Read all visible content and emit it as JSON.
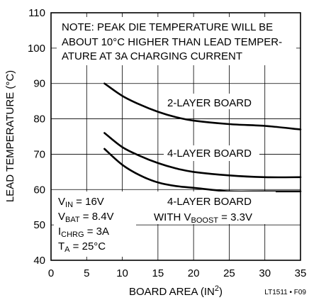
{
  "chart_data": {
    "type": "line",
    "xlabel": "BOARD AREA (IN",
    "xlabel_sup": "2",
    "xlabel_tail": ")",
    "ylabel": "LEAD TEMPERATURE (°C)",
    "xlim": [
      0,
      35
    ],
    "ylim": [
      40,
      110
    ],
    "x_ticks": [
      "0",
      "5",
      "10",
      "15",
      "20",
      "25",
      "30",
      "35"
    ],
    "y_ticks": [
      "40",
      "50",
      "60",
      "70",
      "80",
      "90",
      "100",
      "110"
    ],
    "grid": true,
    "series": [
      {
        "name": "2-LAYER BOARD",
        "x": [
          7.5,
          10,
          12.5,
          15,
          17.5,
          20,
          25,
          30,
          35
        ],
        "y": [
          90,
          86.5,
          84,
          82,
          80.5,
          79.5,
          78.5,
          78,
          77
        ]
      },
      {
        "name": "4-LAYER BOARD",
        "x": [
          7.5,
          10,
          12.5,
          15,
          17.5,
          20,
          25,
          30,
          35
        ],
        "y": [
          76,
          72,
          69.5,
          67.5,
          66,
          65,
          64,
          63.5,
          63.5
        ]
      },
      {
        "name": "4-LAYER BOARD WITH V",
        "name_sub": "BOOST",
        "name_tail": " = 3.3V",
        "x": [
          7.5,
          10,
          12.5,
          15,
          17.5,
          20,
          25,
          30,
          35
        ],
        "y": [
          71.5,
          67,
          64,
          62,
          61,
          60.5,
          59.5,
          59.5,
          59.5
        ]
      }
    ],
    "annotations": {
      "note": [
        "NOTE: PEAK DIE TEMPERATURE WILL BE",
        "ABOUT 10°C HIGHER THAN LEAD TEMPER-",
        "ATURE AT 3A CHARGING CURRENT"
      ],
      "label_2layer": "2-LAYER BOARD",
      "label_4layer": "4-LAYER BOARD",
      "label_boost_line1": "4-LAYER BOARD",
      "label_boost_pre": "WITH V",
      "label_boost_sub": "BOOST",
      "label_boost_post": " = 3.3V",
      "cond_vin": {
        "main": "V",
        "sub": "IN",
        "rest": " = 16V"
      },
      "cond_vbat": {
        "main": "V",
        "sub": "BAT",
        "rest": " = 8.4V"
      },
      "cond_ichrg": {
        "main": "I",
        "sub": "CHRG",
        "rest": " = 3A"
      },
      "cond_ta": {
        "main": "T",
        "sub": "A",
        "rest": " = 25°C"
      }
    },
    "figure_id": "LT1511 • F09"
  }
}
